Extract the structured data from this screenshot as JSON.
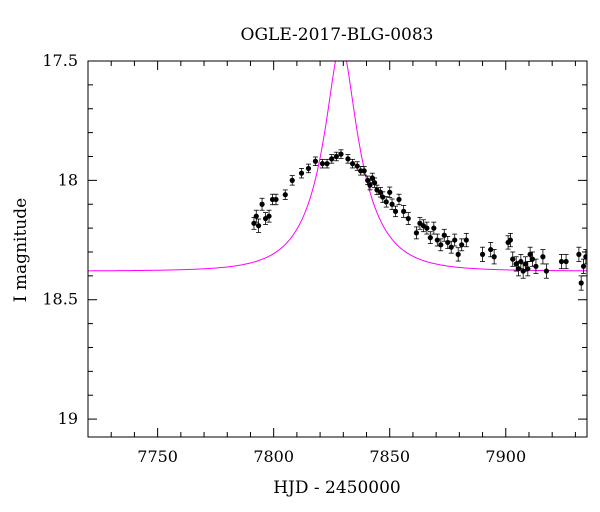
{
  "chart_data": {
    "type": "scatter",
    "title": "OGLE-2017-BLG-0083",
    "xlabel": "HJD - 2450000",
    "ylabel": "I magnitude",
    "xlim": [
      7720,
      7935
    ],
    "ylim": [
      17.5,
      19.075
    ],
    "y_inverted": true,
    "grid": false,
    "x_ticks": [
      7750,
      7800,
      7850,
      7900
    ],
    "y_ticks": [
      17.5,
      18,
      18.5,
      19
    ],
    "x_tick_labels": [
      "7750",
      "7800",
      "7850",
      "7900"
    ],
    "y_tick_labels": [
      "17.5",
      "18",
      "18.5",
      "19"
    ],
    "model": {
      "color": "#ff00ff",
      "t0": 7829,
      "u0": 0.27,
      "tE": 20,
      "base_mag": 18.38,
      "fs": 0.5
    },
    "series": [
      {
        "color": "#000000",
        "points": [
          [
            7791.5,
            18.18,
            0.025
          ],
          [
            7792.5,
            18.15,
            0.025
          ],
          [
            7793.5,
            18.19,
            0.028
          ],
          [
            7795.0,
            18.1,
            0.025
          ],
          [
            7796.5,
            18.16,
            0.025
          ],
          [
            7798.0,
            18.15,
            0.025
          ],
          [
            7799.5,
            18.08,
            0.022
          ],
          [
            7801.0,
            18.08,
            0.022
          ],
          [
            7805.0,
            18.06,
            0.02
          ],
          [
            7808.0,
            18.0,
            0.02
          ],
          [
            7812.0,
            17.97,
            0.02
          ],
          [
            7815.0,
            17.95,
            0.018
          ],
          [
            7818.0,
            17.92,
            0.018
          ],
          [
            7821.0,
            17.93,
            0.018
          ],
          [
            7823.0,
            17.93,
            0.018
          ],
          [
            7825.0,
            17.91,
            0.018
          ],
          [
            7827.0,
            17.9,
            0.018
          ],
          [
            7829.0,
            17.89,
            0.018
          ],
          [
            7832.0,
            17.91,
            0.018
          ],
          [
            7834.0,
            17.93,
            0.018
          ],
          [
            7836.0,
            17.94,
            0.018
          ],
          [
            7837.5,
            17.96,
            0.018
          ],
          [
            7839.0,
            17.96,
            0.018
          ],
          [
            7840.5,
            18.0,
            0.018
          ],
          [
            7841.5,
            18.02,
            0.02
          ],
          [
            7842.5,
            17.99,
            0.02
          ],
          [
            7843.5,
            18.01,
            0.02
          ],
          [
            7844.5,
            18.04,
            0.02
          ],
          [
            7846.0,
            18.05,
            0.02
          ],
          [
            7847.0,
            18.07,
            0.022
          ],
          [
            7848.5,
            18.09,
            0.022
          ],
          [
            7850.0,
            18.05,
            0.022
          ],
          [
            7851.0,
            18.1,
            0.022
          ],
          [
            7852.5,
            18.13,
            0.022
          ],
          [
            7854.0,
            18.08,
            0.022
          ],
          [
            7856.0,
            18.13,
            0.025
          ],
          [
            7858.0,
            18.16,
            0.025
          ],
          [
            7861.5,
            18.22,
            0.025
          ],
          [
            7863.0,
            18.18,
            0.025
          ],
          [
            7864.5,
            18.19,
            0.025
          ],
          [
            7866.0,
            18.2,
            0.025
          ],
          [
            7867.5,
            18.24,
            0.025
          ],
          [
            7869.0,
            18.2,
            0.025
          ],
          [
            7870.5,
            18.25,
            0.025
          ],
          [
            7872.0,
            18.27,
            0.025
          ],
          [
            7873.5,
            18.23,
            0.025
          ],
          [
            7875.0,
            18.26,
            0.025
          ],
          [
            7876.5,
            18.28,
            0.025
          ],
          [
            7878.0,
            18.25,
            0.025
          ],
          [
            7879.5,
            18.31,
            0.028
          ],
          [
            7881.0,
            18.27,
            0.025
          ],
          [
            7883.0,
            18.25,
            0.028
          ],
          [
            7890.0,
            18.31,
            0.03
          ],
          [
            7893.5,
            18.29,
            0.03
          ],
          [
            7895.0,
            18.32,
            0.03
          ],
          [
            7901.0,
            18.26,
            0.028
          ],
          [
            7902.0,
            18.25,
            0.028
          ],
          [
            7903.0,
            18.33,
            0.03
          ],
          [
            7904.5,
            18.35,
            0.03
          ],
          [
            7905.5,
            18.37,
            0.03
          ],
          [
            7906.5,
            18.34,
            0.03
          ],
          [
            7907.5,
            18.38,
            0.03
          ],
          [
            7908.5,
            18.35,
            0.03
          ],
          [
            7909.5,
            18.37,
            0.03
          ],
          [
            7910.5,
            18.31,
            0.03
          ],
          [
            7911.5,
            18.33,
            0.03
          ],
          [
            7913.0,
            18.36,
            0.03
          ],
          [
            7916.0,
            18.32,
            0.03
          ],
          [
            7917.5,
            18.38,
            0.03
          ],
          [
            7924.0,
            18.34,
            0.03
          ],
          [
            7926.0,
            18.34,
            0.03
          ],
          [
            7931.5,
            18.31,
            0.03
          ],
          [
            7932.5,
            18.43,
            0.03
          ],
          [
            7933.5,
            18.36,
            0.03
          ],
          [
            7934.5,
            18.32,
            0.03
          ]
        ]
      }
    ]
  }
}
